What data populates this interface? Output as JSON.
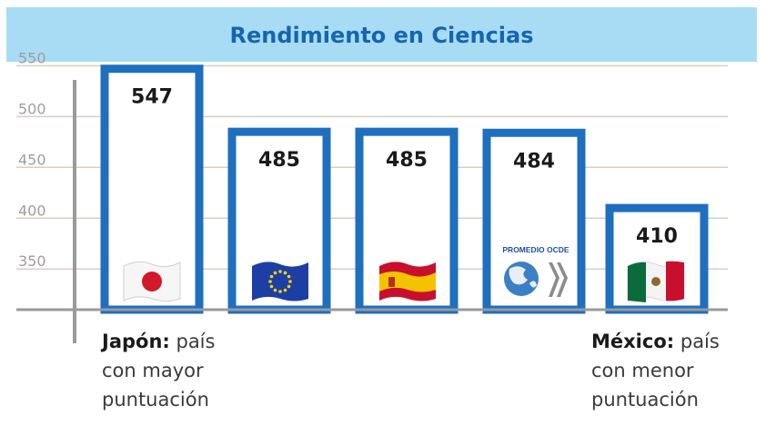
{
  "chart_data": {
    "type": "bar",
    "title": "Rendimiento en Ciencias",
    "categories": [
      "Japón",
      "Unión Europea",
      "España",
      "Promedio OCDE",
      "México"
    ],
    "values": [
      547,
      485,
      485,
      484,
      410
    ],
    "data_labels": [
      "547",
      "485",
      "485",
      "484",
      "410"
    ],
    "icons": [
      "japan-flag-icon",
      "eu-flag-icon",
      "spain-flag-icon",
      "oecd-globe-icon",
      "mexico-flag-icon"
    ],
    "oecd_label": "PROMEDIO OCDE",
    "yticks": [
      350,
      400,
      450,
      500,
      550
    ],
    "ylim": [
      310,
      570
    ],
    "grid": true,
    "colors": {
      "bar": "#1f6fbf",
      "title_bg": "#a8dcf5",
      "title_text": "#1565b0",
      "axis": "#9a9a9a",
      "grid": "#d9cfbf",
      "tick": "#9e9e9e"
    }
  },
  "notes": {
    "high": {
      "country": "Japón:",
      "line1": "país",
      "line2": "con mayor",
      "line3": "puntuación"
    },
    "low": {
      "country": "México:",
      "line1": "país",
      "line2": "con menor",
      "line3": "puntuación"
    }
  }
}
